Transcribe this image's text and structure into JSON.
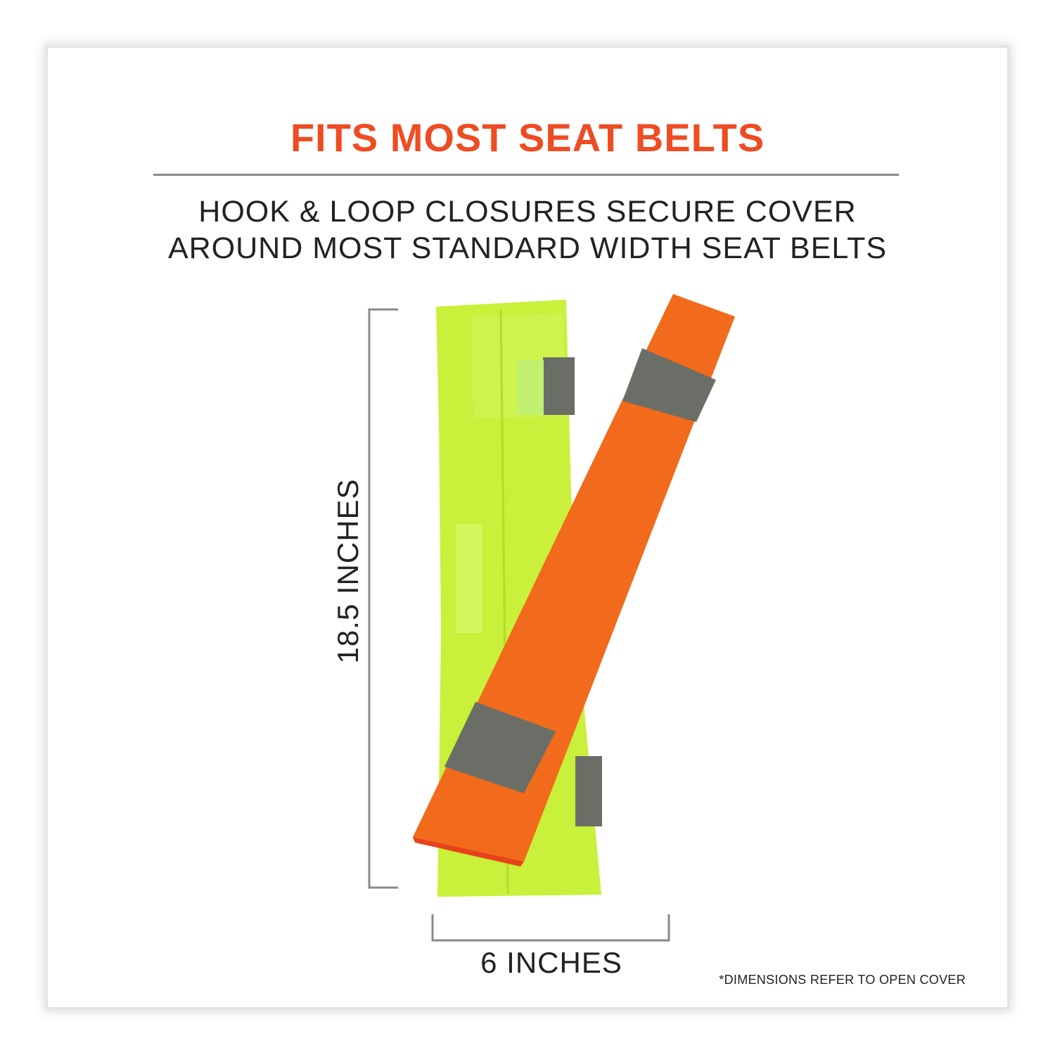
{
  "title": "FITS MOST SEAT BELTS",
  "subtitle_lines": [
    "HOOK & LOOP CLOSURES SECURE COVER",
    "AROUND MOST STANDARD WIDTH SEAT BELTS"
  ],
  "dimensions": {
    "height_label": "18.5 INCHES",
    "width_label": "6 INCHES"
  },
  "footnote": "*DIMENSIONS REFER TO OPEN COVER",
  "colors": {
    "accent": "#ee4c23",
    "lime_cover": "#c9f03a",
    "orange_cover": "#f26a1b",
    "reflective_band": "#6b6e66"
  }
}
